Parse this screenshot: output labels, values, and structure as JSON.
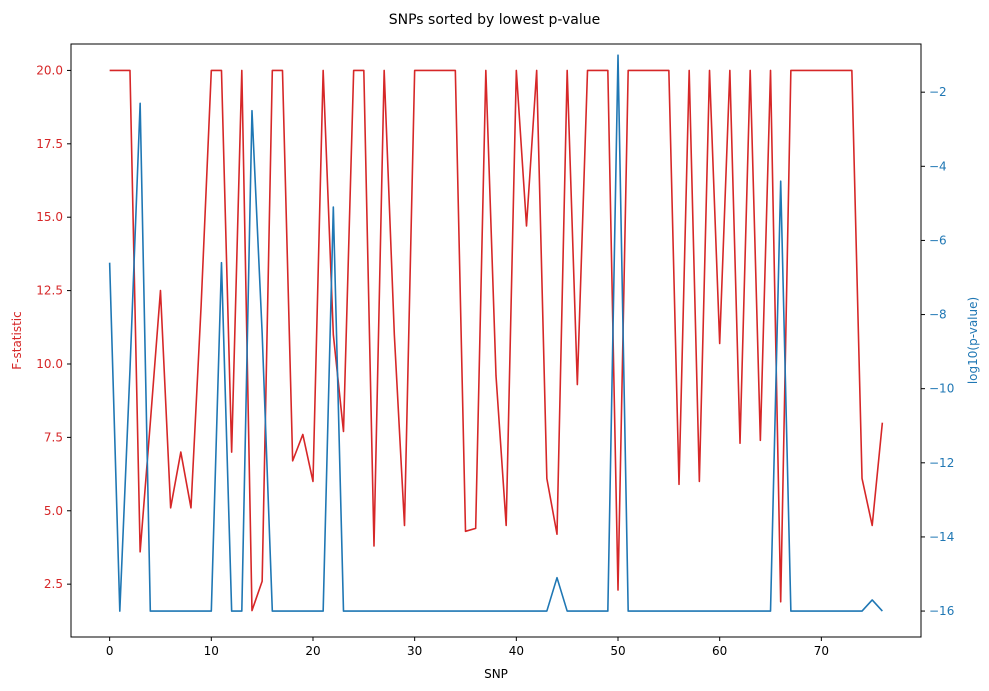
{
  "chart_data": {
    "type": "line",
    "title": "SNPs sorted by lowest p-value",
    "xlabel": "SNP",
    "xlim": [
      -3.8,
      79.8
    ],
    "x_ticks": [
      0,
      10,
      20,
      30,
      40,
      50,
      60,
      70
    ],
    "left_axis": {
      "label": "F-statistic",
      "color": "#d62728",
      "ylim": [
        0.7,
        20.9
      ],
      "ticks": [
        2.5,
        5.0,
        7.5,
        10.0,
        12.5,
        15.0,
        17.5,
        20.0
      ],
      "tick_labels": [
        "2.5",
        "5.0",
        "7.5",
        "10.0",
        "12.5",
        "15.0",
        "17.5",
        "20.0"
      ]
    },
    "right_axis": {
      "label": "log10(p-value)",
      "color": "#1f77b4",
      "ylim": [
        -16.7,
        -0.7
      ],
      "ticks": [
        -16,
        -14,
        -12,
        -10,
        -8,
        -6,
        -4,
        -2
      ],
      "tick_labels": [
        "−16",
        "−14",
        "−12",
        "−10",
        "−8",
        "−6",
        "−4",
        "−2"
      ]
    },
    "series": [
      {
        "axis": "left",
        "color": "#d62728",
        "values": [
          20,
          20,
          20,
          3.6,
          8,
          12.5,
          5.1,
          7,
          5.1,
          12,
          20,
          20,
          7,
          20,
          1.6,
          2.6,
          20,
          20,
          6.7,
          7.6,
          6,
          20,
          11,
          7.7,
          20,
          20,
          3.8,
          20,
          11,
          4.5,
          20,
          20,
          20,
          20,
          20,
          4.3,
          4.4,
          20,
          9.6,
          4.5,
          20,
          14.7,
          20,
          6.1,
          4.2,
          20,
          9.3,
          20,
          20,
          20,
          2.3,
          20,
          20,
          20,
          20,
          20,
          5.9,
          20,
          6,
          20,
          10.7,
          20,
          7.3,
          20,
          7.4,
          20,
          1.9,
          20,
          20,
          20,
          20,
          20,
          20,
          20,
          6.1,
          4.5,
          8
        ]
      },
      {
        "axis": "right",
        "color": "#1f77b4",
        "values": [
          -6.6,
          -16,
          -9.5,
          -2.3,
          -16,
          -16,
          -16,
          -16,
          -16,
          -16,
          -16,
          -6.6,
          -16,
          -16,
          -2.5,
          -8.5,
          -16,
          -16,
          -16,
          -16,
          -16,
          -16,
          -5.1,
          -16,
          -16,
          -16,
          -16,
          -16,
          -16,
          -16,
          -16,
          -16,
          -16,
          -16,
          -16,
          -16,
          -16,
          -16,
          -16,
          -16,
          -16,
          -16,
          -16,
          -16,
          -15.1,
          -16,
          -16,
          -16,
          -16,
          -16,
          -1,
          -16,
          -16,
          -16,
          -16,
          -16,
          -16,
          -16,
          -16,
          -16,
          -16,
          -16,
          -16,
          -16,
          -16,
          -16,
          -4.4,
          -16,
          -16,
          -16,
          -16,
          -16,
          -16,
          -16,
          -16,
          -15.7,
          -16
        ]
      }
    ]
  }
}
